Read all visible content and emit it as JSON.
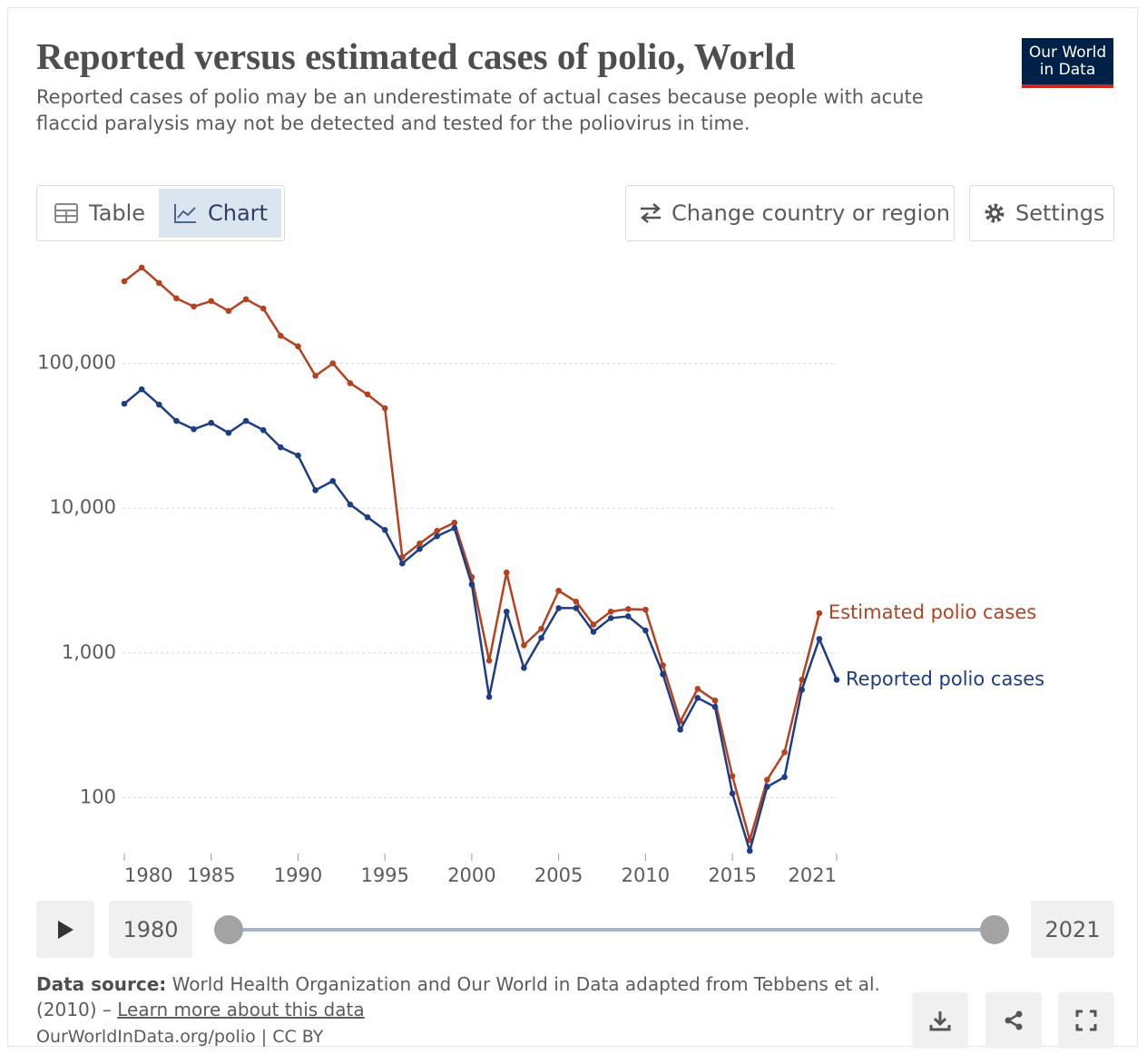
{
  "chart_data": {
    "type": "line",
    "title": "Reported versus estimated cases of polio, World",
    "subtitle": "Reported cases of polio may be an underestimate of actual cases because people with acute flaccid paralysis may not be detected and tested for the poliovirus in time.",
    "x": [
      1980,
      1981,
      1982,
      1983,
      1984,
      1985,
      1986,
      1987,
      1988,
      1989,
      1990,
      1991,
      1992,
      1993,
      1994,
      1995,
      1996,
      1997,
      1998,
      1999,
      2000,
      2001,
      2002,
      2003,
      2004,
      2005,
      2006,
      2007,
      2008,
      2009,
      2010,
      2011,
      2012,
      2013,
      2014,
      2015,
      2016,
      2017,
      2018,
      2019,
      2020,
      2021
    ],
    "series": [
      {
        "name": "Estimated polio cases",
        "color": "#b5411f",
        "values": [
          369000,
          458000,
          359000,
          281000,
          247000,
          269000,
          230000,
          277000,
          239000,
          155000,
          131000,
          82000,
          100000,
          73000,
          61000,
          49000,
          4580,
          5700,
          6960,
          7940,
          3340,
          885,
          3590,
          1130,
          1470,
          2690,
          2260,
          1570,
          1930,
          2010,
          1990,
          822,
          336,
          565,
          469,
          141,
          51,
          133,
          206,
          653,
          1880,
          null
        ]
      },
      {
        "name": "Reported polio cases",
        "color": "#1d3d84",
        "values": [
          52600,
          66200,
          51900,
          40000,
          35100,
          38800,
          33100,
          40000,
          34600,
          26300,
          23100,
          13300,
          15400,
          10600,
          8650,
          7070,
          4150,
          5230,
          6400,
          7280,
          2970,
          497,
          1930,
          788,
          1270,
          2040,
          2040,
          1400,
          1740,
          1790,
          1430,
          713,
          295,
          489,
          424,
          107,
          43,
          119,
          139,
          557,
          1250,
          653
        ]
      }
    ],
    "xlim": [
      1980,
      2021
    ],
    "xticks": [
      1980,
      1985,
      1990,
      1995,
      2000,
      2005,
      2010,
      2015,
      2021
    ],
    "ylim": [
      40,
      500000
    ],
    "yticks": [
      100,
      {
        "value": 1000,
        "label": "1,000"
      },
      {
        "value": 10000,
        "label": "10,000"
      },
      {
        "value": 100000,
        "label": "100,000"
      }
    ],
    "yscale": "log",
    "grid": true
  },
  "ui": {
    "logo": [
      "Our World",
      "in Data"
    ],
    "tabs": [
      "Table",
      "Chart"
    ],
    "buttons": [
      "Change country or region",
      "Settings"
    ],
    "source_label": "Data source:",
    "source_text": "World Health Organization and Our World in Data adapted from Tebbens et al. (2010) – ",
    "source_link": "Learn more about this data",
    "footer_url": "OurWorldInData.org/polio | CC BY"
  }
}
